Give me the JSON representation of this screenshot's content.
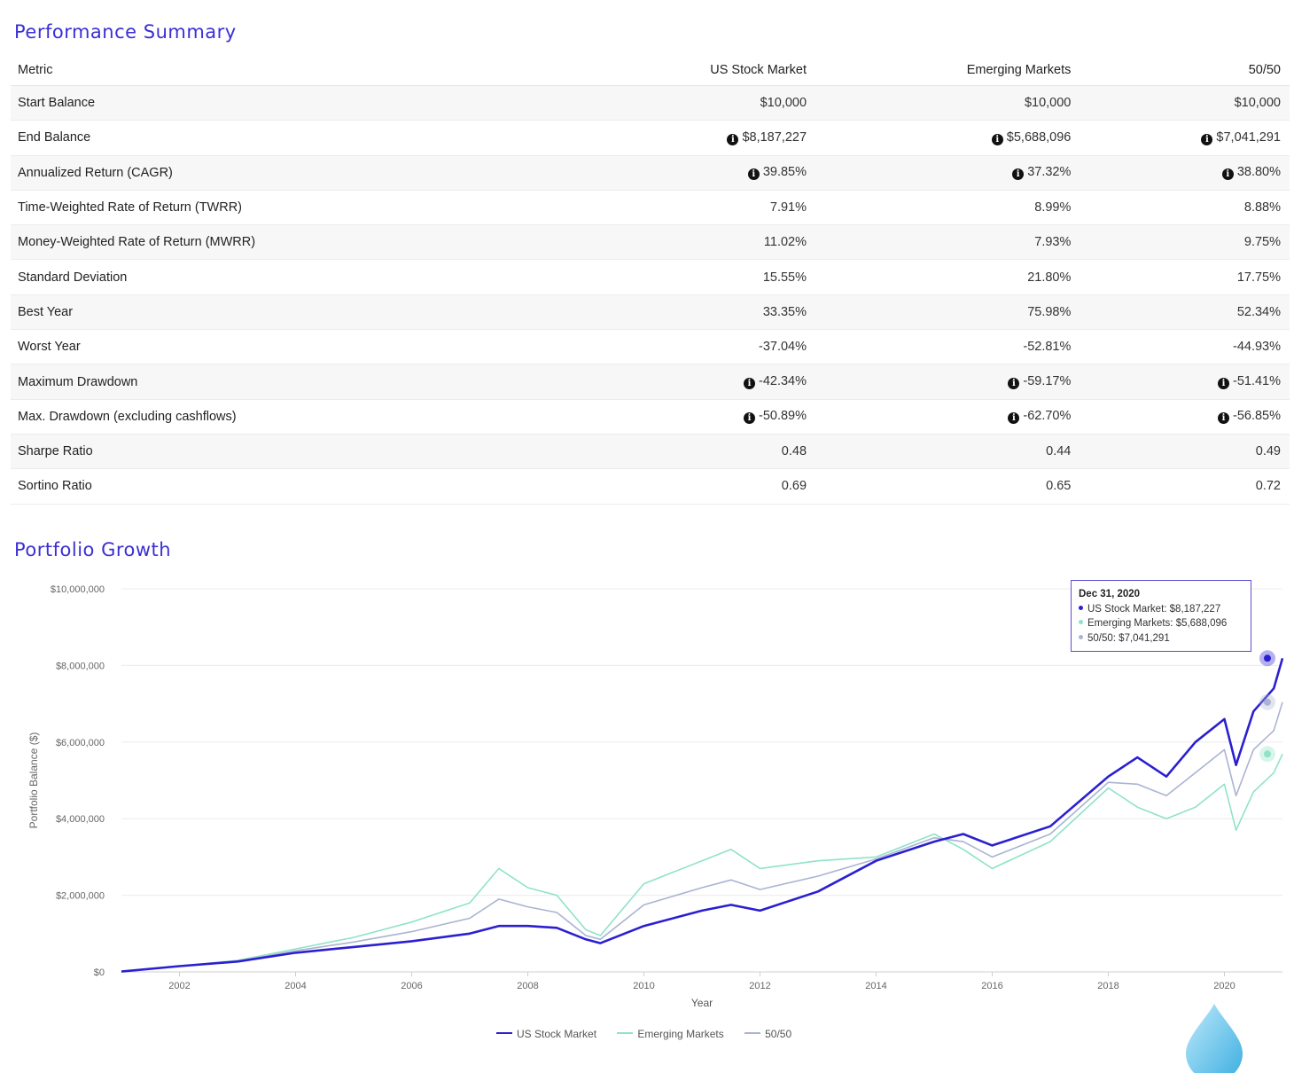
{
  "summary": {
    "title": "Performance Summary",
    "columns": [
      "Metric",
      "US Stock Market",
      "Emerging Markets",
      "50/50"
    ],
    "rows": [
      {
        "metric": "Start Balance",
        "info": false,
        "values": [
          "$10,000",
          "$10,000",
          "$10,000"
        ]
      },
      {
        "metric": "End Balance",
        "info": true,
        "values": [
          "$8,187,227",
          "$5,688,096",
          "$7,041,291"
        ]
      },
      {
        "metric": "Annualized Return (CAGR)",
        "info": true,
        "values": [
          "39.85%",
          "37.32%",
          "38.80%"
        ]
      },
      {
        "metric": "Time-Weighted Rate of Return (TWRR)",
        "info": false,
        "values": [
          "7.91%",
          "8.99%",
          "8.88%"
        ]
      },
      {
        "metric": "Money-Weighted Rate of Return (MWRR)",
        "info": false,
        "values": [
          "11.02%",
          "7.93%",
          "9.75%"
        ]
      },
      {
        "metric": "Standard Deviation",
        "info": false,
        "values": [
          "15.55%",
          "21.80%",
          "17.75%"
        ]
      },
      {
        "metric": "Best Year",
        "info": false,
        "values": [
          "33.35%",
          "75.98%",
          "52.34%"
        ]
      },
      {
        "metric": "Worst Year",
        "info": false,
        "values": [
          "-37.04%",
          "-52.81%",
          "-44.93%"
        ]
      },
      {
        "metric": "Maximum Drawdown",
        "info": true,
        "values": [
          "-42.34%",
          "-59.17%",
          "-51.41%"
        ]
      },
      {
        "metric": "Max. Drawdown (excluding cashflows)",
        "info": true,
        "values": [
          "-50.89%",
          "-62.70%",
          "-56.85%"
        ]
      },
      {
        "metric": "Sharpe Ratio",
        "info": false,
        "values": [
          "0.48",
          "0.44",
          "0.49"
        ]
      },
      {
        "metric": "Sortino Ratio",
        "info": false,
        "values": [
          "0.69",
          "0.65",
          "0.72"
        ]
      }
    ]
  },
  "growth": {
    "title": "Portfolio Growth",
    "tooltip": {
      "date": "Dec 31, 2020",
      "lines": [
        "US Stock Market: $8,187,227",
        "Emerging Markets: $5,688,096",
        "50/50: $7,041,291"
      ]
    },
    "legend": [
      "US Stock Market",
      "Emerging Markets",
      "50/50"
    ]
  },
  "colors": {
    "accent": "#3b2fd6",
    "us": "#2b1fd0",
    "em": "#8fe3c8",
    "mix": "#aab4d2"
  },
  "chart_data": {
    "type": "line",
    "xlabel": "Year",
    "ylabel": "Portfolio Balance ($)",
    "xlim": [
      2001.0,
      2021.0
    ],
    "ylim": [
      0,
      10000000
    ],
    "x_ticks": [
      "2002",
      "2004",
      "2006",
      "2008",
      "2010",
      "2012",
      "2014",
      "2016",
      "2018",
      "2020"
    ],
    "y_ticks": [
      "$0",
      "$2,000,000",
      "$4,000,000",
      "$6,000,000",
      "$8,000,000",
      "$10,000,000"
    ],
    "legend_position": "bottom",
    "grid": true,
    "x": [
      2001.0,
      2002.0,
      2003.0,
      2004.0,
      2005.0,
      2006.0,
      2007.0,
      2007.5,
      2008.0,
      2008.5,
      2009.0,
      2009.25,
      2010.0,
      2011.0,
      2011.5,
      2012.0,
      2013.0,
      2014.0,
      2015.0,
      2015.5,
      2016.0,
      2017.0,
      2018.0,
      2018.5,
      2019.0,
      2019.5,
      2020.0,
      2020.2,
      2020.5,
      2020.85,
      2021.0
    ],
    "series": [
      {
        "name": "US Stock Market",
        "values": [
          10000,
          150000,
          270000,
          500000,
          650000,
          800000,
          1000000,
          1200000,
          1200000,
          1150000,
          850000,
          750000,
          1200000,
          1600000,
          1750000,
          1600000,
          2100000,
          2900000,
          3400000,
          3600000,
          3300000,
          3800000,
          5100000,
          5600000,
          5100000,
          6000000,
          6600000,
          5400000,
          6800000,
          7400000,
          8187227
        ]
      },
      {
        "name": "Emerging Markets",
        "values": [
          10000,
          150000,
          300000,
          600000,
          900000,
          1300000,
          1800000,
          2700000,
          2200000,
          2000000,
          1100000,
          950000,
          2300000,
          2900000,
          3200000,
          2700000,
          2900000,
          3000000,
          3600000,
          3200000,
          2700000,
          3400000,
          4800000,
          4300000,
          4000000,
          4300000,
          4900000,
          3700000,
          4700000,
          5200000,
          5688096
        ]
      },
      {
        "name": "50/50",
        "values": [
          10000,
          150000,
          280000,
          550000,
          780000,
          1050000,
          1400000,
          1900000,
          1700000,
          1550000,
          950000,
          850000,
          1750000,
          2200000,
          2400000,
          2150000,
          2500000,
          2950000,
          3500000,
          3400000,
          3000000,
          3600000,
          4950000,
          4900000,
          4600000,
          5200000,
          5800000,
          4600000,
          5800000,
          6300000,
          7041291
        ]
      }
    ]
  }
}
